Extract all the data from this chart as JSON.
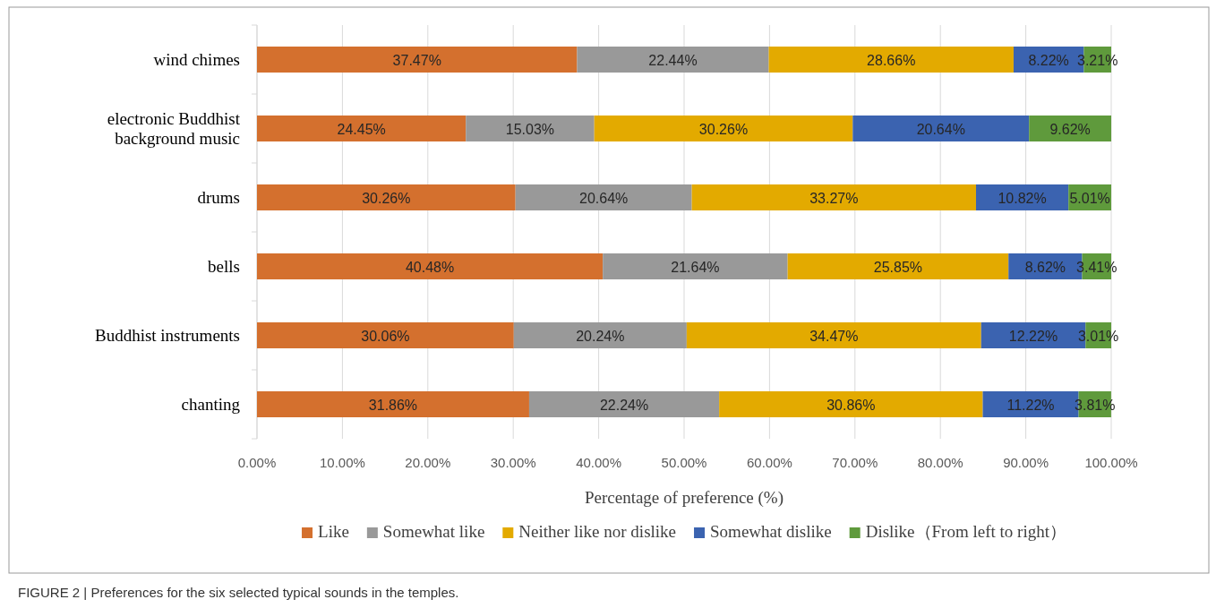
{
  "chart_data": {
    "type": "bar",
    "orientation": "horizontal",
    "stacked": true,
    "grid": "x",
    "legend": "bottom",
    "categories": [
      "wind chimes",
      "electronic Buddhist background music",
      "drums",
      "bells",
      "Buddhist instruments",
      "chanting"
    ],
    "series": [
      {
        "name": "Like",
        "color": "#d4702e",
        "values": [
          37.47,
          24.45,
          30.26,
          40.48,
          30.06,
          31.86
        ],
        "value_labels": [
          "37.47%",
          "24.45%",
          "30.26%",
          "40.48%",
          "30.06%",
          "31.86%"
        ]
      },
      {
        "name": "Somewhat like",
        "color": "#999999",
        "values": [
          22.44,
          15.03,
          20.64,
          21.64,
          20.24,
          22.24
        ],
        "value_labels": [
          "22.44%",
          "15.03%",
          "20.64%",
          "21.64%",
          "20.24%",
          "22.24%"
        ]
      },
      {
        "name": "Neither like nor dislike",
        "color": "#e3aa00",
        "values": [
          28.66,
          30.26,
          33.27,
          25.85,
          34.47,
          30.86
        ],
        "value_labels": [
          "28.66%",
          "30.26%",
          "33.27%",
          "25.85%",
          "34.47%",
          "30.86%"
        ]
      },
      {
        "name": "Somewhat dislike",
        "color": "#3b63b0",
        "values": [
          8.22,
          20.64,
          10.82,
          8.62,
          12.22,
          11.22
        ],
        "value_labels": [
          "8.22%",
          "20.64%",
          "10.82%",
          "8.62%",
          "12.22%",
          "11.22%"
        ]
      },
      {
        "name": "Dislike（From left to right）",
        "color": "#5f9a3c",
        "values": [
          3.21,
          9.62,
          5.01,
          3.41,
          3.01,
          3.81
        ],
        "value_labels": [
          "3.21%",
          "9.62%",
          "5.01%",
          "3.41%",
          "3.01%",
          "3.81%"
        ]
      }
    ],
    "xlim": [
      0,
      100
    ],
    "xticks": [
      {
        "value": 0,
        "label": "0.00%"
      },
      {
        "value": 10,
        "label": "10.00%"
      },
      {
        "value": 20,
        "label": "20.00%"
      },
      {
        "value": 30,
        "label": "30.00%"
      },
      {
        "value": 40,
        "label": "40.00%"
      },
      {
        "value": 50,
        "label": "50.00%"
      },
      {
        "value": 60,
        "label": "60.00%"
      },
      {
        "value": 70,
        "label": "70.00%"
      },
      {
        "value": 80,
        "label": "80.00%"
      },
      {
        "value": 90,
        "label": "90.00%"
      },
      {
        "value": 100,
        "label": "100.00%"
      }
    ],
    "xlabel": "Percentage of preference (%)",
    "annotations": [
      "FIGURE 2 | Preferences for the six selected typical sounds in the temples."
    ]
  }
}
